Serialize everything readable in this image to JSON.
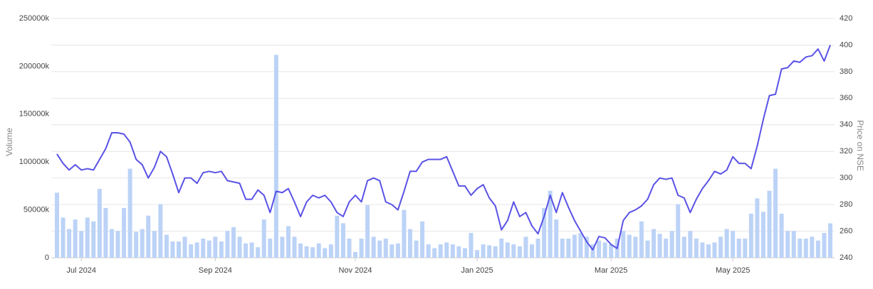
{
  "chart_data": {
    "type": "combo",
    "axis_labels": {
      "y": "Volume",
      "y2": "Price on NSE"
    },
    "categories": [
      null,
      null,
      null,
      null,
      "Jul 2024",
      null,
      null,
      null,
      null,
      null,
      null,
      null,
      null,
      null,
      null,
      null,
      null,
      null,
      null,
      null,
      null,
      null,
      null,
      null,
      null,
      null,
      "Sep 2024",
      null,
      null,
      null,
      null,
      null,
      null,
      null,
      null,
      null,
      null,
      null,
      null,
      null,
      null,
      null,
      null,
      null,
      null,
      null,
      null,
      null,
      null,
      "Nov 2024",
      null,
      null,
      null,
      null,
      null,
      null,
      null,
      null,
      null,
      null,
      null,
      null,
      null,
      null,
      null,
      null,
      null,
      null,
      null,
      "Jan 2025",
      null,
      null,
      null,
      null,
      null,
      null,
      null,
      null,
      null,
      null,
      null,
      null,
      null,
      null,
      null,
      null,
      null,
      null,
      null,
      null,
      null,
      "Mar 2025",
      null,
      null,
      null,
      null,
      null,
      null,
      null,
      null,
      null,
      null,
      null,
      null,
      null,
      null,
      null,
      null,
      null,
      null,
      null,
      "May 2025",
      null,
      null,
      null,
      null,
      null,
      null,
      null,
      null,
      null,
      null,
      null,
      null,
      null,
      null,
      null,
      null
    ],
    "series": [
      {
        "type": "bar",
        "axis": "y",
        "color": "#bcd3f7",
        "values": [
          68000,
          42000,
          30000,
          40000,
          28000,
          42000,
          38000,
          72000,
          52000,
          30000,
          28000,
          52000,
          93000,
          27000,
          30000,
          44000,
          28000,
          56000,
          24000,
          17000,
          17000,
          22000,
          14000,
          16000,
          20000,
          18000,
          22000,
          17000,
          28000,
          32000,
          22000,
          15000,
          16000,
          11000,
          40000,
          20000,
          212000,
          22000,
          33000,
          22000,
          15000,
          12000,
          11000,
          15000,
          10000,
          14000,
          44000,
          36000,
          20000,
          6000,
          20000,
          55000,
          22000,
          18000,
          20000,
          14000,
          15000,
          50000,
          30000,
          18000,
          38000,
          14000,
          10000,
          14000,
          16000,
          14000,
          12000,
          10000,
          26000,
          8000,
          14000,
          13000,
          12000,
          20000,
          16000,
          14000,
          12000,
          22000,
          14000,
          20000,
          52000,
          70000,
          40000,
          20000,
          20000,
          24000,
          26000,
          22000,
          14000,
          18000,
          16000,
          14000,
          20000,
          28000,
          24000,
          22000,
          38000,
          18000,
          30000,
          25000,
          20000,
          28000,
          56000,
          22000,
          28000,
          20000,
          16000,
          14000,
          16000,
          22000,
          30000,
          28000,
          20000,
          20000,
          46000,
          62000,
          48000,
          70000,
          93000,
          46000,
          28000,
          28000,
          20000,
          20000,
          22000,
          18000,
          26000,
          36000
        ]
      },
      {
        "type": "line",
        "axis": "y2",
        "color": "#5a52e6",
        "values": [
          318,
          311,
          306,
          310,
          306,
          307,
          306,
          314,
          322,
          334,
          334,
          333,
          327,
          314,
          310,
          300,
          308,
          320,
          316,
          303,
          289,
          300,
          300,
          296,
          304,
          305,
          304,
          305,
          298,
          297,
          296,
          284,
          284,
          291,
          287,
          274,
          290,
          289,
          292,
          282,
          271,
          282,
          287,
          285,
          287,
          282,
          274,
          271,
          282,
          287,
          282,
          298,
          300,
          298,
          282,
          280,
          276,
          290,
          305,
          305,
          312,
          314,
          314,
          314,
          316,
          305,
          294,
          294,
          287,
          292,
          295,
          285,
          279,
          261,
          268,
          282,
          271,
          274,
          264,
          258,
          271,
          287,
          274,
          289,
          278,
          268,
          260,
          252,
          246,
          256,
          255,
          250,
          247,
          268,
          274,
          276,
          279,
          284,
          295,
          300,
          299,
          300,
          287,
          285,
          274,
          284,
          292,
          298,
          305,
          303,
          306,
          316,
          311,
          311,
          307,
          324,
          344,
          362,
          363,
          382,
          383,
          388,
          387,
          391,
          392,
          397,
          388,
          400
        ]
      }
    ],
    "ylim": [
      0,
      250000
    ],
    "yticks": [
      0,
      {
        "value": 50000,
        "label": "50000k"
      },
      {
        "value": 100000,
        "label": "100000k"
      },
      {
        "value": 150000,
        "label": "150000k"
      },
      {
        "value": 200000,
        "label": "200000k"
      },
      {
        "value": 250000,
        "label": "250000k"
      }
    ],
    "y2lim": [
      240,
      420
    ],
    "y2ticks": [
      240,
      260,
      280,
      300,
      320,
      340,
      360,
      380,
      400,
      420
    ],
    "grid": true
  }
}
